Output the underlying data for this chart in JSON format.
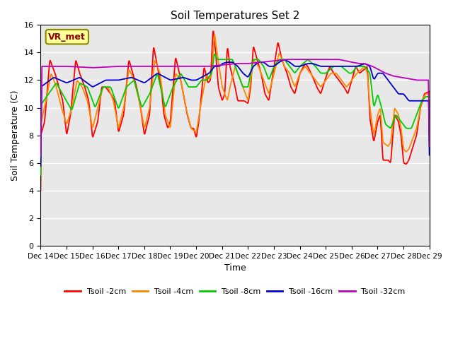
{
  "title": "Soil Temperatures Set 2",
  "xlabel": "Time",
  "ylabel": "Soil Temperature (C)",
  "ylim": [
    0,
    16
  ],
  "yticks": [
    0,
    2,
    4,
    6,
    8,
    10,
    12,
    14,
    16
  ],
  "bg_color": "#e8e8e8",
  "fig_color": "#ffffff",
  "colors": {
    "Tsoil -2cm": "#ff0000",
    "Tsoil -4cm": "#ff8800",
    "Tsoil -8cm": "#00cc00",
    "Tsoil -16cm": "#0000cc",
    "Tsoil -32cm": "#bb00bb"
  },
  "annotation_text": "VR_met",
  "x_tick_labels": [
    "Dec 14",
    "Dec 15",
    "Dec 16",
    "Dec 17",
    "Dec 18",
    "Dec 19",
    "Dec 20",
    "Dec 21",
    "Dec 22",
    "Dec 23",
    "Dec 24",
    "Dec 25",
    "Dec 26",
    "Dec 27",
    "Dec 28",
    "Dec 29"
  ]
}
